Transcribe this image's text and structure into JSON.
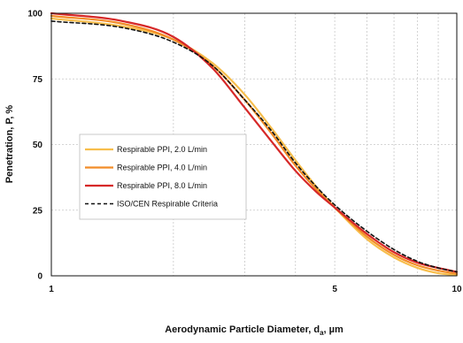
{
  "chart_data": {
    "type": "line",
    "xlabel": "Aerodynamic Particle Diameter, d",
    "xlabel_sub": "a",
    "xlabel_unit": ", µm",
    "ylabel": "Penetration, P, %",
    "x_scale": "log",
    "xlim": [
      1,
      10
    ],
    "ylim": [
      0,
      100
    ],
    "x_ticks": [
      {
        "value": 1,
        "label": "1"
      },
      {
        "value": 5,
        "label": "5"
      },
      {
        "value": 10,
        "label": "10"
      }
    ],
    "y_ticks": [
      {
        "value": 0,
        "label": "0"
      },
      {
        "value": 25,
        "label": "25"
      },
      {
        "value": 50,
        "label": "50"
      },
      {
        "value": 75,
        "label": "75"
      },
      {
        "value": 100,
        "label": "100"
      }
    ],
    "grid": true,
    "legend_position": "center-left",
    "series": [
      {
        "name": "Respirable PPI, 2.0 L/min",
        "color": "#F7BE4C",
        "dash": "solid",
        "x": [
          1,
          1.5,
          2,
          2.5,
          3,
          3.5,
          4,
          4.5,
          5,
          6,
          7,
          8,
          9,
          10
        ],
        "y": [
          98.0,
          95.0,
          90.0,
          81.0,
          69.0,
          56.0,
          44.0,
          34.0,
          26.0,
          14.0,
          7.0,
          3.0,
          1.0,
          0.3
        ]
      },
      {
        "name": "Respirable PPI, 4.0 L/min",
        "color": "#F28C28",
        "dash": "solid",
        "x": [
          1,
          1.5,
          2,
          2.5,
          3,
          3.5,
          4,
          4.5,
          5,
          6,
          7,
          8,
          9,
          10
        ],
        "y": [
          99.0,
          96.0,
          90.0,
          80.0,
          67.0,
          54.0,
          42.0,
          33.0,
          26.0,
          15.0,
          8.0,
          4.0,
          2.0,
          0.8
        ]
      },
      {
        "name": "Respirable PPI, 8.0 L/min",
        "color": "#D62828",
        "dash": "solid",
        "x": [
          1,
          1.5,
          2,
          2.5,
          3,
          3.5,
          4,
          4.5,
          5,
          6,
          7,
          8,
          9,
          10
        ],
        "y": [
          100.0,
          97.0,
          91.0,
          79.0,
          64.0,
          51.0,
          40.0,
          32.0,
          26.0,
          16.0,
          9.0,
          5.0,
          3.0,
          1.5
        ]
      },
      {
        "name": "ISO/CEN Respirable Criteria",
        "color": "#111111",
        "dash": "dashed",
        "x": [
          1,
          1.5,
          2,
          2.5,
          3,
          3.5,
          4,
          4.5,
          5,
          6,
          7,
          8,
          9,
          10
        ],
        "y": [
          97.0,
          94.5,
          89.0,
          80.0,
          67.0,
          55.0,
          43.0,
          34.0,
          27.0,
          17.0,
          10.0,
          5.5,
          3.0,
          1.5
        ]
      }
    ]
  }
}
